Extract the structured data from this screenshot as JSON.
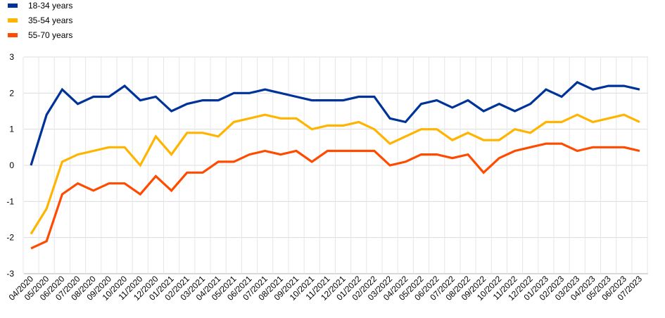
{
  "chart_data": {
    "type": "line",
    "title": "",
    "xlabel": "",
    "ylabel": "",
    "ylim": [
      -3,
      3
    ],
    "y_ticks": [
      -3,
      -2,
      -1,
      0,
      1,
      2,
      3
    ],
    "grid": "horizontal and vertical",
    "legend_position": "top-left",
    "categories": [
      "04/2020",
      "05/2020",
      "06/2020",
      "07/2020",
      "08/2020",
      "09/2020",
      "10/2020",
      "11/2020",
      "12/2020",
      "01/2021",
      "02/2021",
      "03/2021",
      "04/2021",
      "05/2021",
      "06/2021",
      "07/2021",
      "08/2021",
      "09/2021",
      "10/2021",
      "11/2021",
      "12/2021",
      "01/2022",
      "02/2022",
      "03/2022",
      "04/2022",
      "05/2022",
      "06/2022",
      "07/2022",
      "08/2022",
      "09/2022",
      "10/2022",
      "11/2022",
      "12/2022",
      "01/2023",
      "02/2023",
      "03/2023",
      "04/2023",
      "05/2023",
      "06/2023",
      "07/2023"
    ],
    "series": [
      {
        "name": "18-34 years",
        "color": "#003399",
        "values": [
          0.0,
          1.4,
          2.1,
          1.7,
          1.9,
          1.9,
          2.2,
          1.8,
          1.9,
          1.5,
          1.7,
          1.8,
          1.8,
          2.0,
          2.0,
          2.1,
          2.0,
          1.9,
          1.8,
          1.8,
          1.8,
          1.9,
          1.9,
          1.3,
          1.2,
          1.7,
          1.8,
          1.6,
          1.8,
          1.5,
          1.7,
          1.5,
          1.7,
          2.1,
          1.9,
          2.3,
          2.1,
          2.2,
          2.2,
          2.1
        ]
      },
      {
        "name": "35-54 years",
        "color": "#FFB400",
        "values": [
          -1.9,
          -1.2,
          0.1,
          0.3,
          0.4,
          0.5,
          0.5,
          0.0,
          0.8,
          0.3,
          0.9,
          0.9,
          0.8,
          1.2,
          1.3,
          1.4,
          1.3,
          1.3,
          1.0,
          1.1,
          1.1,
          1.2,
          1.0,
          0.6,
          0.8,
          1.0,
          1.0,
          0.7,
          0.9,
          0.7,
          0.7,
          1.0,
          0.9,
          1.2,
          1.2,
          1.4,
          1.2,
          1.3,
          1.4,
          1.2
        ]
      },
      {
        "name": "55-70 years",
        "color": "#FF4B00",
        "values": [
          -2.3,
          -2.1,
          -0.8,
          -0.5,
          -0.7,
          -0.5,
          -0.5,
          -0.8,
          -0.3,
          -0.7,
          -0.2,
          -0.2,
          0.1,
          0.1,
          0.3,
          0.4,
          0.3,
          0.4,
          0.1,
          0.4,
          0.4,
          0.4,
          0.4,
          0.0,
          0.1,
          0.3,
          0.3,
          0.2,
          0.3,
          -0.2,
          0.2,
          0.4,
          0.5,
          0.6,
          0.6,
          0.4,
          0.5,
          0.5,
          0.5,
          0.4
        ]
      }
    ]
  }
}
